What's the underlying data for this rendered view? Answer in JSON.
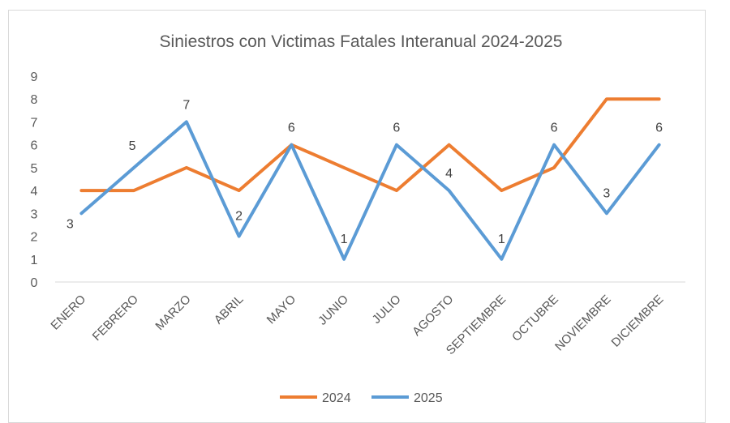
{
  "chart_data": {
    "type": "line",
    "title": "Siniestros con Victimas Fatales Interanual 2024-2025",
    "xlabel": "",
    "ylabel": "",
    "categories": [
      "ENERO",
      "FEBRERO",
      "MARZO",
      "ABRIL",
      "MAYO",
      "JUNIO",
      "JULIO",
      "AGOSTO",
      "SEPTIEMBRE",
      "OCTUBRE",
      "NOVIEMBRE",
      "DICIEMBRE"
    ],
    "ylim": [
      0,
      9
    ],
    "yticks": [
      "0",
      "1",
      "2",
      "3",
      "4",
      "5",
      "6",
      "7",
      "8",
      "9"
    ],
    "grid": false,
    "legend": "bottom",
    "series": [
      {
        "name": "2024",
        "color": "#ED7D31",
        "values": [
          4,
          4,
          5,
          4,
          6,
          5,
          4,
          6,
          4,
          5,
          8,
          8
        ],
        "data_labels": false
      },
      {
        "name": "2025",
        "color": "#5B9BD5",
        "values": [
          3,
          5,
          7,
          2,
          6,
          1,
          6,
          4,
          1,
          6,
          3,
          6
        ],
        "data_labels": true
      }
    ]
  }
}
